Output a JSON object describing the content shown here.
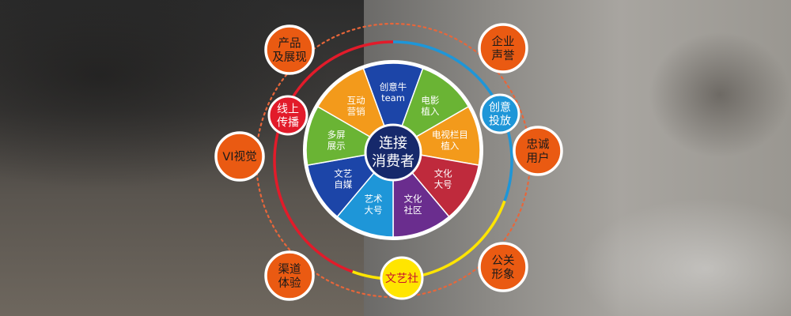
{
  "center": {
    "line1": "连接",
    "line2": "消费者"
  },
  "wedges": [
    {
      "line1": "创意牛",
      "line2": "team",
      "color": "#1c45a8"
    },
    {
      "line1": "电影",
      "line2": "植入",
      "color": "#6ab434"
    },
    {
      "line1": "电视栏目",
      "line2": "植入",
      "color": "#f39a1b"
    },
    {
      "line1": "文化",
      "line2": "大号",
      "color": "#bf2a3c"
    },
    {
      "line1": "文化",
      "line2": "社区",
      "color": "#6a2d8e"
    },
    {
      "line1": "艺术",
      "line2": "大号",
      "color": "#1e96d8"
    },
    {
      "line1": "文艺",
      "line2": "自媒",
      "color": "#1c45a8"
    },
    {
      "line1": "多屏",
      "line2": "展示",
      "color": "#6ab434"
    },
    {
      "line1": "互动",
      "line2": "营销",
      "color": "#f39a1b"
    }
  ],
  "ring_nodes": [
    {
      "line1": "线上",
      "line2": "传播",
      "fill": "#e21b2a",
      "text_color": "#ffffff"
    },
    {
      "line1": "创意",
      "line2": "投放",
      "fill": "#1e96d8",
      "text_color": "#ffffff"
    },
    {
      "line1": "文艺社",
      "line2": "",
      "fill": "#ffe500",
      "text_color": "#c8102e"
    }
  ],
  "outer_nodes": [
    {
      "line1": "产品",
      "line2": "及展现"
    },
    {
      "line1": "企业",
      "line2": "声誉"
    },
    {
      "line1": "忠诚",
      "line2": "用户"
    },
    {
      "line1": "公关",
      "line2": "形象"
    },
    {
      "line1": "渠道",
      "line2": "体验"
    },
    {
      "line1": "VI视觉",
      "line2": ""
    }
  ],
  "colors": {
    "center_fill": "#16296b",
    "outer_node_fill": "#ea5a12",
    "outer_node_text": "#1a1a1a",
    "ring_red": "#e21b2a",
    "ring_blue": "#1e96d8",
    "ring_yellow": "#ffe500",
    "dotted_ring": "#e8663a"
  }
}
